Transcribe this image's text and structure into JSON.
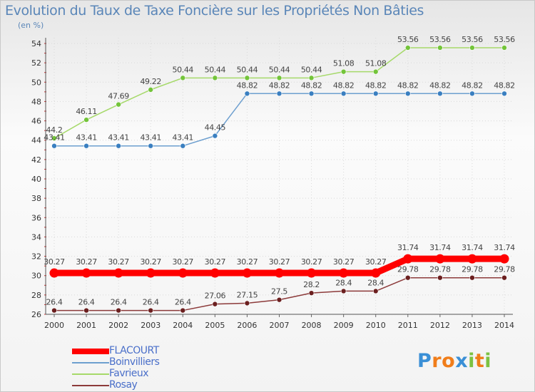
{
  "chart_data": {
    "type": "line",
    "title": "Evolution du Taux de Taxe Foncière sur les Propriétés Non Bâties",
    "ylabel": "(en %)",
    "xlabel": "",
    "x": [
      "2000",
      "2001",
      "2002",
      "2003",
      "2004",
      "2005",
      "2006",
      "2007",
      "2008",
      "2009",
      "2010",
      "2011",
      "2012",
      "2013",
      "2014"
    ],
    "ylim": [
      26,
      54
    ],
    "yticks": [
      26,
      28,
      30,
      32,
      34,
      36,
      38,
      40,
      42,
      44,
      46,
      48,
      50,
      52,
      54
    ],
    "grid": true,
    "legend_position": "bottom-left",
    "series": [
      {
        "name": "FLACOURT",
        "color": "#ff0000",
        "point_color": "#ff0000",
        "emphasis": true,
        "values": [
          30.27,
          30.27,
          30.27,
          30.27,
          30.27,
          30.27,
          30.27,
          30.27,
          30.27,
          30.27,
          30.27,
          31.74,
          31.74,
          31.74,
          31.74
        ],
        "labels": [
          "30.27",
          "30.27",
          "30.27",
          "30.27",
          "30.27",
          "30.27",
          "30.27",
          "30.27",
          "30.27",
          "30.27",
          "30.27",
          "31.74",
          "31.74",
          "31.74",
          "31.74"
        ]
      },
      {
        "name": "Boinvilliers",
        "color": "#6d9fcf",
        "point_color": "#3a7fc0",
        "emphasis": false,
        "values": [
          43.41,
          43.41,
          43.41,
          43.41,
          43.41,
          44.45,
          48.82,
          48.82,
          48.82,
          48.82,
          48.82,
          48.82,
          48.82,
          48.82,
          48.82
        ],
        "labels": [
          "43.41",
          "43.41",
          "43.41",
          "43.41",
          "43.41",
          "44.45",
          "48.82",
          "48.82",
          "48.82",
          "48.82",
          "48.82",
          "48.82",
          "48.82",
          "48.82",
          "48.82"
        ]
      },
      {
        "name": "Favrieux",
        "color": "#a6d96a",
        "point_color": "#73c43a",
        "emphasis": false,
        "values": [
          44.2,
          46.11,
          47.69,
          49.22,
          50.44,
          50.44,
          50.44,
          50.44,
          50.44,
          51.08,
          51.08,
          53.56,
          53.56,
          53.56,
          53.56
        ],
        "labels": [
          "44.2",
          "46.11",
          "47.69",
          "49.22",
          "50.44",
          "50.44",
          "50.44",
          "50.44",
          "50.44",
          "51.08",
          "51.08",
          "53.56",
          "53.56",
          "53.56",
          "53.56"
        ]
      },
      {
        "name": "Rosay",
        "color": "#8c3a3a",
        "point_color": "#6b1f1f",
        "emphasis": false,
        "values": [
          26.4,
          26.4,
          26.4,
          26.4,
          26.4,
          27.06,
          27.15,
          27.5,
          28.2,
          28.4,
          28.4,
          29.78,
          29.78,
          29.78,
          29.78
        ],
        "labels": [
          "26.4",
          "26.4",
          "26.4",
          "26.4",
          "26.4",
          "27.06",
          "27.15",
          "27.5",
          "28.2",
          "28.4",
          "28.4",
          "29.78",
          "29.78",
          "29.78",
          "29.78"
        ]
      }
    ]
  },
  "logo": {
    "text": "Proxiti",
    "letters": [
      "P",
      "r",
      "o",
      "x",
      "i",
      "t",
      "i"
    ],
    "colors": [
      "#3a8fd6",
      "#f07d1a",
      "#f07d1a",
      "#3a8fd6",
      "#7cc242",
      "#f07d1a",
      "#7cc242"
    ]
  }
}
